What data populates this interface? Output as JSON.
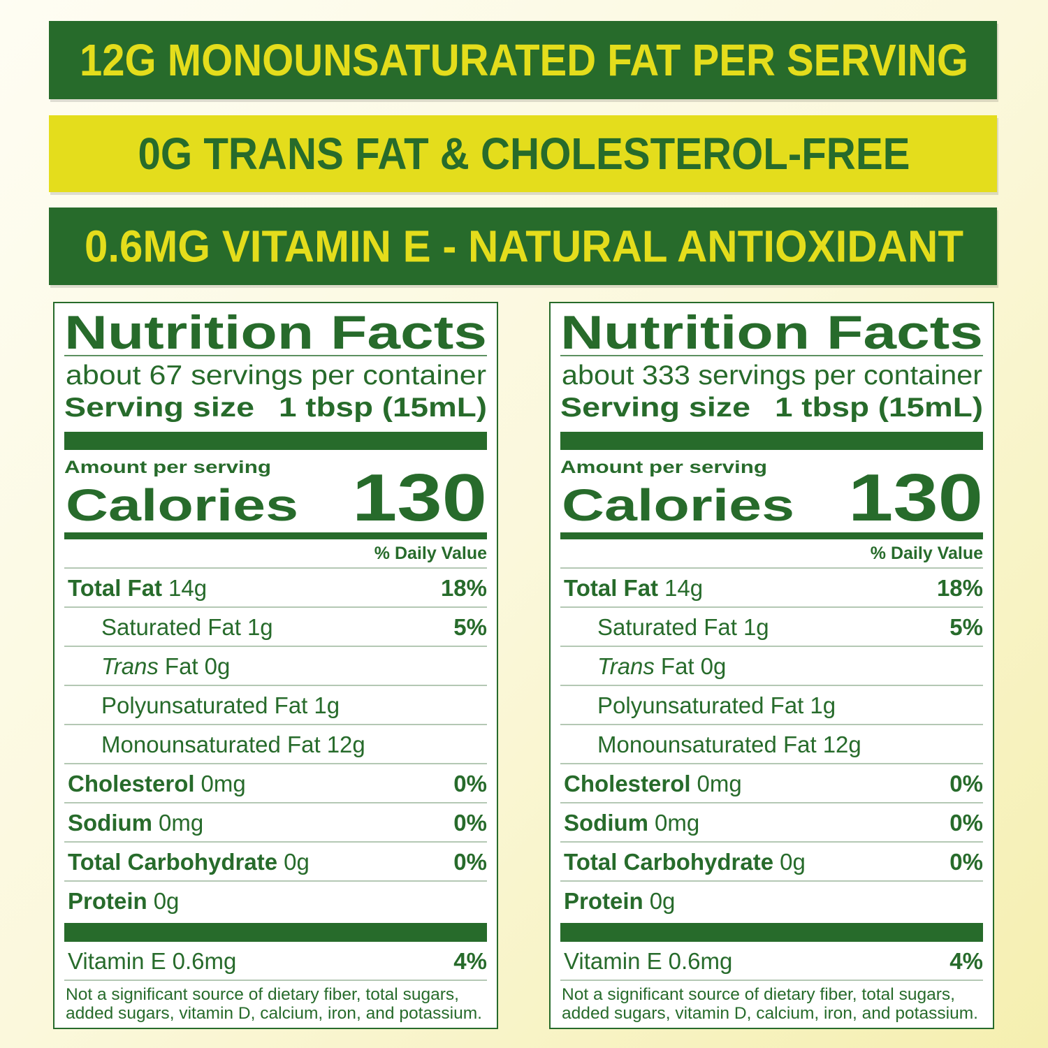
{
  "banners": [
    "12G MONOUNSATURATED FAT PER SERVING",
    "0G TRANS FAT & CHOLESTEROL-FREE",
    "0.6MG VITAMIN E - NATURAL ANTIOXIDANT"
  ],
  "labels": [
    {
      "title": "Nutrition Facts",
      "servings": "about 67 servings per container",
      "serving_size": {
        "label": "Serving size",
        "value": "1 tbsp (15mL)"
      },
      "amount_per_serving": "Amount per serving",
      "calories": {
        "label": "Calories",
        "value": 130
      },
      "daily_value_header": "% Daily Value",
      "nutrients": [
        {
          "name": "Total Fat",
          "amount": "14g",
          "daily_value": "18%",
          "sub_rows": [
            {
              "name": "Saturated Fat",
              "amount": "1g",
              "daily_value": "5%"
            },
            {
              "name_italic": "Trans",
              "name": "Fat",
              "amount": "0g"
            },
            {
              "name": "Polyunsaturated Fat",
              "amount": "1g"
            },
            {
              "name": "Monounsaturated Fat",
              "amount": "12g"
            }
          ]
        },
        {
          "name": "Cholesterol",
          "amount": "0mg",
          "daily_value": "0%"
        },
        {
          "name": "Sodium",
          "amount": "0mg",
          "daily_value": "0%"
        },
        {
          "name": "Total Carbohydrate",
          "amount": "0g",
          "daily_value": "0%"
        },
        {
          "name": "Protein",
          "amount": "0g"
        }
      ],
      "vitamins": [
        {
          "name": "Vitamin E",
          "amount": "0.6mg",
          "daily_value": "4%"
        }
      ],
      "footnote": [
        "Not a significant source of dietary fiber, total sugars,",
        "added sugars, vitamin D, calcium, iron, and potassium."
      ]
    },
    {
      "title": "Nutrition Facts",
      "servings": "about 333 servings per container",
      "serving_size": {
        "label": "Serving size",
        "value": "1 tbsp (15mL)"
      },
      "amount_per_serving": "Amount per serving",
      "calories": {
        "label": "Calories",
        "value": 130
      },
      "daily_value_header": "% Daily Value",
      "nutrients": [
        {
          "name": "Total Fat",
          "amount": "14g",
          "daily_value": "18%",
          "sub_rows": [
            {
              "name": "Saturated Fat",
              "amount": "1g",
              "daily_value": "5%"
            },
            {
              "name_italic": "Trans",
              "name": "Fat",
              "amount": "0g"
            },
            {
              "name": "Polyunsaturated Fat",
              "amount": "1g"
            },
            {
              "name": "Monounsaturated Fat",
              "amount": "12g"
            }
          ]
        },
        {
          "name": "Cholesterol",
          "amount": "0mg",
          "daily_value": "0%"
        },
        {
          "name": "Sodium",
          "amount": "0mg",
          "daily_value": "0%"
        },
        {
          "name": "Total Carbohydrate",
          "amount": "0g",
          "daily_value": "0%"
        },
        {
          "name": "Protein",
          "amount": "0g"
        }
      ],
      "vitamins": [
        {
          "name": "Vitamin E",
          "amount": "0.6mg",
          "daily_value": "4%"
        }
      ],
      "footnote": [
        "Not a significant source of dietary fiber, total sugars,",
        "added sugars, vitamin D, calcium, iron, and potassium."
      ]
    }
  ]
}
